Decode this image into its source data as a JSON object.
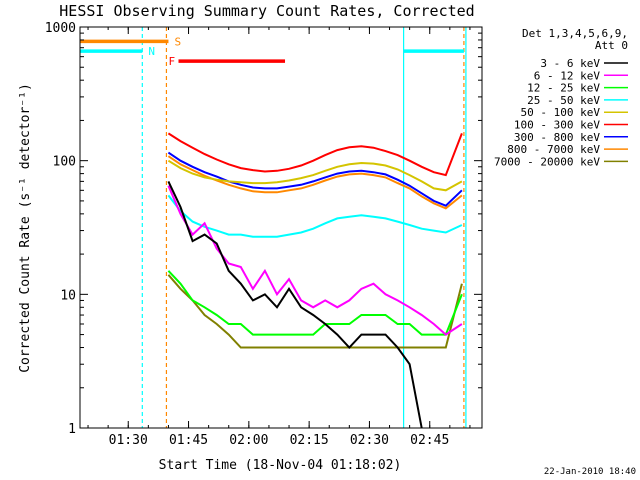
{
  "chart_data": {
    "type": "line",
    "title": "HESSI Observing Summary Count Rates, Corrected",
    "xlabel": "Start Time (18-Nov-04 01:18:02)",
    "ylabel": "Corrected Count Rate (s⁻¹ detector⁻¹)",
    "y_scale": "log",
    "ylim": [
      1,
      1000
    ],
    "xlim_minutes_after_start": [
      0,
      100
    ],
    "x_ticks": [
      {
        "label": "01:30",
        "minute": 12
      },
      {
        "label": "01:45",
        "minute": 27
      },
      {
        "label": "02:00",
        "minute": 42
      },
      {
        "label": "02:15",
        "minute": 57
      },
      {
        "label": "02:30",
        "minute": 72
      },
      {
        "label": "02:45",
        "minute": 87
      }
    ],
    "y_ticks": [
      {
        "label": "1",
        "value": 1
      },
      {
        "label": "10",
        "value": 10
      },
      {
        "label": "100",
        "value": 100
      },
      {
        "label": "1000",
        "value": 1000
      }
    ],
    "legend_header": [
      "Det 1,3,4,5,6,9,",
      "Att 0"
    ],
    "legend_position": "right",
    "x_minutes": [
      22,
      25,
      28,
      31,
      34,
      37,
      40,
      43,
      46,
      49,
      52,
      55,
      58,
      61,
      64,
      67,
      70,
      73,
      76,
      79,
      82,
      85,
      88,
      91,
      95
    ],
    "series": [
      {
        "name": "3 - 6 keV",
        "color": "#000000",
        "values": [
          70,
          45,
          25,
          28,
          24,
          15,
          12,
          9,
          10,
          8,
          11,
          8,
          7,
          6,
          5,
          4,
          5,
          5,
          5,
          4,
          3,
          1,
          null,
          null,
          null
        ]
      },
      {
        "name": "6 - 12 keV",
        "color": "#ff00ff",
        "values": [
          65,
          40,
          28,
          34,
          22,
          17,
          16,
          11,
          15,
          10,
          13,
          9,
          8,
          9,
          8,
          9,
          11,
          12,
          10,
          9,
          8,
          7,
          6,
          5,
          6
        ]
      },
      {
        "name": "12 - 25 keV",
        "color": "#00ff00",
        "values": [
          15,
          12,
          9,
          8,
          7,
          6,
          6,
          5,
          5,
          5,
          5,
          5,
          5,
          6,
          6,
          6,
          7,
          7,
          7,
          6,
          6,
          5,
          5,
          5,
          10
        ]
      },
      {
        "name": "25 - 50 keV",
        "color": "#00ffff",
        "values": [
          55,
          42,
          35,
          32,
          30,
          28,
          28,
          27,
          27,
          27,
          28,
          29,
          31,
          34,
          37,
          38,
          39,
          38,
          37,
          35,
          33,
          31,
          30,
          29,
          33
        ]
      },
      {
        "name": "50 - 100 keV",
        "color": "#d4c400",
        "values": [
          100,
          88,
          80,
          75,
          72,
          70,
          69,
          68,
          68,
          69,
          71,
          74,
          78,
          84,
          90,
          94,
          96,
          95,
          92,
          86,
          78,
          70,
          62,
          60,
          70
        ]
      },
      {
        "name": "100 - 300 keV",
        "color": "#ff0000",
        "values": [
          160,
          140,
          125,
          112,
          102,
          94,
          88,
          85,
          83,
          84,
          87,
          92,
          100,
          110,
          120,
          126,
          128,
          125,
          118,
          110,
          100,
          90,
          82,
          78,
          160
        ]
      },
      {
        "name": "300 - 800 keV",
        "color": "#0000ff",
        "values": [
          115,
          100,
          90,
          82,
          76,
          70,
          66,
          63,
          62,
          62,
          64,
          66,
          70,
          75,
          80,
          83,
          84,
          82,
          79,
          72,
          65,
          57,
          50,
          46,
          60
        ]
      },
      {
        "name": "800 - 7000 keV",
        "color": "#ff8800",
        "values": [
          108,
          94,
          85,
          77,
          71,
          66,
          62,
          59,
          58,
          58,
          60,
          62,
          66,
          71,
          76,
          79,
          80,
          78,
          75,
          68,
          62,
          54,
          48,
          44,
          55
        ]
      },
      {
        "name": "7000 - 20000 keV",
        "color": "#808000",
        "values": [
          14,
          11,
          9,
          7,
          6,
          5,
          4,
          4,
          4,
          4,
          4,
          4,
          4,
          4,
          4,
          4,
          4,
          4,
          4,
          4,
          4,
          4,
          4,
          4,
          12
        ]
      }
    ],
    "flag_bars": [
      {
        "label": "S",
        "color": "#ff8800",
        "start_minute": 0,
        "end_minute": 22,
        "level": 780
      },
      {
        "label": "N",
        "color": "#00ffff",
        "start_minute": 0,
        "end_minute": 15.5,
        "level": 660
      },
      {
        "label": "N",
        "color": "#00ffff",
        "start_minute": 80.5,
        "end_minute": 95.5,
        "level": 660
      },
      {
        "label": "F",
        "color": "#ff0000",
        "start_minute": 24.5,
        "end_minute": 51,
        "level": 555
      }
    ],
    "flag_labels": [
      {
        "text": "S",
        "color": "#ff8800",
        "minute": 23.5,
        "level": 780
      },
      {
        "text": "N",
        "color": "#00ffff",
        "minute": 17,
        "level": 660
      },
      {
        "text": "F",
        "color": "#ff0000",
        "minute": 22,
        "level": 555
      }
    ],
    "vlines": [
      {
        "minute": 15.5,
        "color": "#00ffff",
        "style": "dashed"
      },
      {
        "minute": 21.5,
        "color": "#ff8800",
        "style": "dashed"
      },
      {
        "minute": 80.5,
        "color": "#00ffff",
        "style": "solid"
      },
      {
        "minute": 95.5,
        "color": "#ff8800",
        "style": "dashed"
      },
      {
        "minute": 96,
        "color": "#00ffff",
        "style": "solid"
      }
    ],
    "timestamp": "22-Jan-2010 18:40"
  }
}
